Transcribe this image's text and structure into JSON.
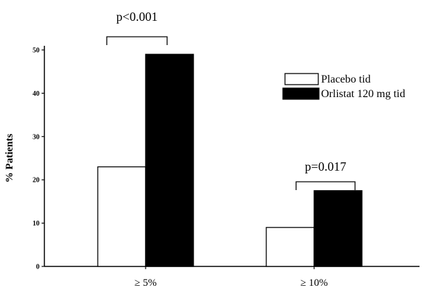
{
  "chart_data": {
    "type": "bar",
    "title": "",
    "xlabel": "",
    "ylabel": "% Patients",
    "ylim": [
      0,
      50
    ],
    "yticks": [
      0,
      10,
      20,
      30,
      40,
      50
    ],
    "categories": [
      "≥ 5%",
      "≥ 10%"
    ],
    "series": [
      {
        "name": "Placebo tid",
        "values": [
          23,
          9
        ],
        "color": "#ffffff"
      },
      {
        "name": "Orlistat 120 mg tid",
        "values": [
          49,
          17.5
        ],
        "color": "#000000"
      }
    ],
    "legend_position": "top-right",
    "grid": false,
    "annotations": [
      "p<0.001",
      "p=0.017"
    ]
  }
}
